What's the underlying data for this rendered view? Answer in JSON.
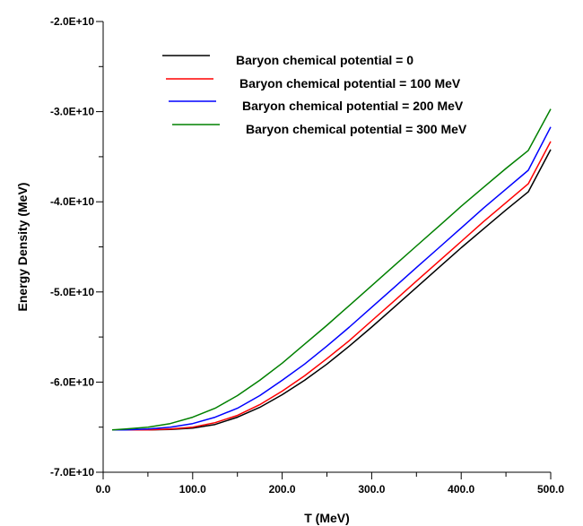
{
  "chart_data": {
    "type": "line",
    "xlabel": "T (MeV)",
    "ylabel": "Energy Density (MeV)",
    "xlim": [
      0,
      500
    ],
    "ylim": [
      -70000000000.0,
      -20000000000.0
    ],
    "x_ticks": [
      0,
      100,
      200,
      300,
      400,
      500
    ],
    "x_tick_labels": [
      "0.0",
      "100.0",
      "200.0",
      "300.0",
      "400.0",
      "500.0"
    ],
    "y_ticks": [
      -70000000000.0,
      -60000000000.0,
      -50000000000.0,
      -40000000000.0,
      -30000000000.0,
      -20000000000.0
    ],
    "y_tick_labels": [
      "-7.0E+10",
      "-6.0E+10",
      "-5.0E+10",
      "-4.0E+10",
      "-3.0E+10",
      "-2.0E+10"
    ],
    "grid": false,
    "legend_position": "top-right",
    "x": [
      10,
      25,
      50,
      75,
      100,
      125,
      150,
      175,
      200,
      225,
      250,
      275,
      300,
      325,
      350,
      375,
      400,
      425,
      450,
      475,
      500
    ],
    "series": [
      {
        "name": "Baryon chemical potential = 0",
        "color": "#000000",
        "values": [
          -65300000000.0,
          -65300000000.0,
          -65300000000.0,
          -65250000000.0,
          -65100000000.0,
          -64700000000.0,
          -63900000000.0,
          -62800000000.0,
          -61400000000.0,
          -59800000000.0,
          -58000000000.0,
          -56000000000.0,
          -53900000000.0,
          -51700000000.0,
          -49500000000.0,
          -47300000000.0,
          -45100000000.0,
          -43000000000.0,
          -40900000000.0,
          -38900000000.0,
          -34200000000.0
        ]
      },
      {
        "name": "Baryon chemical potential = 100 MeV",
        "color": "#ff0000",
        "values": [
          -65300000000.0,
          -65300000000.0,
          -65300000000.0,
          -65200000000.0,
          -65000000000.0,
          -64500000000.0,
          -63700000000.0,
          -62500000000.0,
          -61000000000.0,
          -59300000000.0,
          -57400000000.0,
          -55400000000.0,
          -53200000000.0,
          -51000000000.0,
          -48800000000.0,
          -46600000000.0,
          -44400000000.0,
          -42200000000.0,
          -40100000000.0,
          -38000000000.0,
          -33300000000.0
        ]
      },
      {
        "name": "Baryon chemical potential = 200 MeV",
        "color": "#0000ff",
        "values": [
          -65300000000.0,
          -65300000000.0,
          -65200000000.0,
          -65000000000.0,
          -64600000000.0,
          -63900000000.0,
          -62900000000.0,
          -61500000000.0,
          -59800000000.0,
          -58000000000.0,
          -56000000000.0,
          -53900000000.0,
          -51700000000.0,
          -49500000000.0,
          -47300000000.0,
          -45100000000.0,
          -42900000000.0,
          -40700000000.0,
          -38600000000.0,
          -36500000000.0,
          -31700000000.0
        ]
      },
      {
        "name": "Baryon chemical potential = 300 MeV",
        "color": "#008000",
        "values": [
          -65300000000.0,
          -65200000000.0,
          -65000000000.0,
          -64600000000.0,
          -63900000000.0,
          -62900000000.0,
          -61500000000.0,
          -59800000000.0,
          -57900000000.0,
          -55800000000.0,
          -53700000000.0,
          -51500000000.0,
          -49300000000.0,
          -47100000000.0,
          -44900000000.0,
          -42700000000.0,
          -40500000000.0,
          -38400000000.0,
          -36300000000.0,
          -34300000000.0,
          -29700000000.0
        ]
      }
    ]
  }
}
